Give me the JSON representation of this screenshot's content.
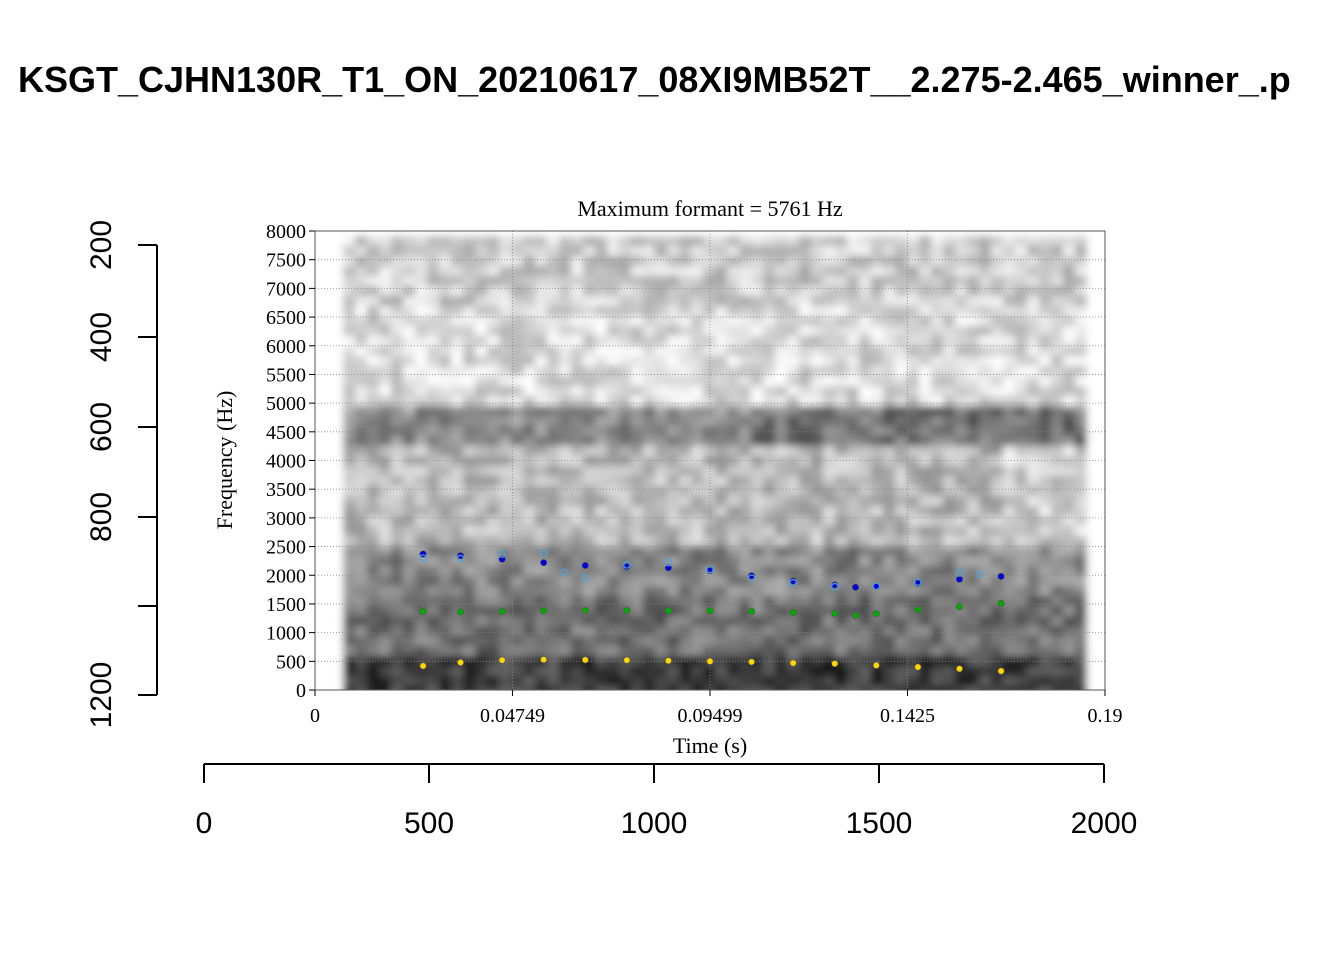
{
  "page_title": "KSGT_CJHN130R_T1_ON_20210617_08XI9MB52T__2.275-2.465_winner_.p",
  "chart_data": {
    "type": "scatter",
    "subtitle": "Maximum formant  =  5761 Hz",
    "xlabel": "Time (s)",
    "ylabel": "Frequency (Hz)",
    "xlim": [
      0,
      0.19
    ],
    "ylim": [
      0,
      8000
    ],
    "x_ticks": [
      "0",
      "0.04749",
      "0.09499",
      "0.1425",
      "0.19"
    ],
    "x_tick_values": [
      0,
      0.04749,
      0.09499,
      0.1425,
      0.19
    ],
    "y_ticks": [
      "0",
      "500",
      "1000",
      "1500",
      "2000",
      "2500",
      "3000",
      "3500",
      "4000",
      "4500",
      "5000",
      "5500",
      "6000",
      "6500",
      "7000",
      "7500",
      "8000"
    ],
    "grid": true,
    "background": "spectrogram (grayscale)",
    "series": [
      {
        "color": "#ffd700",
        "x": [
          0.026,
          0.035,
          0.045,
          0.055,
          0.065,
          0.075,
          0.085,
          0.095,
          0.105,
          0.115,
          0.125,
          0.135,
          0.145,
          0.155,
          0.165
        ],
        "y": [
          420,
          480,
          520,
          530,
          525,
          520,
          510,
          500,
          490,
          470,
          460,
          430,
          400,
          370,
          330
        ]
      },
      {
        "color": "#00aa00",
        "x": [
          0.026,
          0.035,
          0.045,
          0.055,
          0.065,
          0.075,
          0.085,
          0.095,
          0.105,
          0.115,
          0.125,
          0.13,
          0.135,
          0.145,
          0.155,
          0.165
        ],
        "y": [
          1370,
          1360,
          1370,
          1380,
          1390,
          1390,
          1380,
          1380,
          1370,
          1350,
          1330,
          1300,
          1330,
          1400,
          1450,
          1510
        ]
      },
      {
        "color": "#0000dd",
        "x": [
          0.026,
          0.035,
          0.045,
          0.055,
          0.065,
          0.075,
          0.085,
          0.095,
          0.105,
          0.115,
          0.125,
          0.13,
          0.135,
          0.145,
          0.155,
          0.165
        ],
        "y": [
          2370,
          2340,
          2280,
          2220,
          2170,
          2150,
          2130,
          2080,
          1990,
          1900,
          1830,
          1790,
          1800,
          1860,
          1930,
          1980
        ]
      },
      {
        "color": "#4aa3df",
        "x": [
          0.026,
          0.035,
          0.045,
          0.055,
          0.06,
          0.065,
          0.075,
          0.085,
          0.095,
          0.105,
          0.115,
          0.125,
          0.135,
          0.145,
          0.155,
          0.16
        ],
        "y": [
          2300,
          2290,
          2370,
          2390,
          2050,
          1950,
          2180,
          2220,
          2100,
          1950,
          1870,
          1800,
          1810,
          1880,
          2040,
          2020
        ]
      }
    ]
  },
  "outer_axes": {
    "y_ticks": [
      "200",
      "400",
      "600",
      "800",
      "1200"
    ],
    "x_ticks": [
      "0",
      "500",
      "1000",
      "1500",
      "2000"
    ]
  }
}
